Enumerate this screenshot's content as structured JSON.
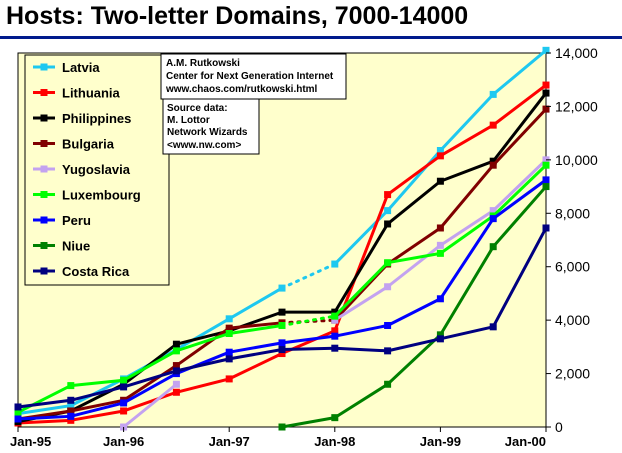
{
  "title": "Hosts: Two-letter Domains, 7000-14000",
  "credit": {
    "lines": [
      "A.M. Rutkowski",
      "Center for Next Generation Internet",
      "www.chaos.com/rutkowski.html"
    ]
  },
  "source": {
    "lines": [
      "Source data:",
      "M. Lottor",
      "Network Wizards",
      "<www.nw.com>"
    ]
  },
  "colors": {
    "plot_background": "#ffffcc",
    "title_rule": "#001a8c"
  },
  "chart_data": {
    "type": "line",
    "title": "Hosts: Two-letter Domains, 7000-14000",
    "x": [
      0,
      0.5,
      1,
      1.5,
      2,
      2.5,
      3,
      3.5,
      4,
      4.5,
      5
    ],
    "x_tick_labels": [
      "Jan-95",
      "Jan-96",
      "Jan-97",
      "Jan-98",
      "Jan-99",
      "Jan-00"
    ],
    "x_tick_positions": [
      0,
      1,
      2,
      3,
      4,
      5
    ],
    "x_unit": "years since Jan-95 (semiannual surveys)",
    "ylim": [
      0,
      14000
    ],
    "y_ticks": [
      0,
      2000,
      4000,
      6000,
      8000,
      10000,
      12000,
      14000
    ],
    "y_tick_labels": [
      "0",
      "2,000",
      "4,000",
      "6,000",
      "8,000",
      "10,000",
      "12,000",
      "14,000"
    ],
    "y_axis_side": "right",
    "grid": false,
    "legend_position": "top-left",
    "series": [
      {
        "name": "Latvia",
        "color": "#1ec8f0",
        "values": [
          500,
          800,
          1800,
          2900,
          4050,
          5200,
          6100,
          8100,
          10350,
          12450,
          14100
        ],
        "dotted_segments": [
          [
            5,
            6
          ]
        ]
      },
      {
        "name": "Lithuania",
        "color": "#ff0000",
        "values": [
          150,
          250,
          600,
          1300,
          1800,
          2750,
          3600,
          8700,
          10150,
          11300,
          12800
        ],
        "dotted_segments": []
      },
      {
        "name": "Philippines",
        "color": "#000000",
        "values": [
          200,
          600,
          1600,
          3100,
          3600,
          4300,
          4300,
          7600,
          9200,
          9950,
          12500
        ],
        "dotted_segments": []
      },
      {
        "name": "Bulgaria",
        "color": "#800000",
        "values": [
          300,
          600,
          1000,
          2300,
          3700,
          3900,
          4000,
          6100,
          7450,
          9800,
          11900
        ],
        "dotted_segments": [
          [
            5,
            6
          ]
        ]
      },
      {
        "name": "Yugoslavia",
        "color": "#c3a2f0",
        "values": [
          null,
          null,
          0,
          1600,
          null,
          null,
          4000,
          5250,
          6800,
          8100,
          10000
        ],
        "dotted_segments": []
      },
      {
        "name": "Luxembourg",
        "color": "#00ff00",
        "values": [
          550,
          1550,
          1750,
          2850,
          3500,
          3800,
          4150,
          6150,
          6500,
          7900,
          9800
        ],
        "dotted_segments": [
          [
            5,
            6
          ]
        ]
      },
      {
        "name": "Peru",
        "color": "#0000ff",
        "values": [
          300,
          400,
          900,
          2000,
          2800,
          3150,
          3400,
          3800,
          4800,
          7800,
          9250
        ],
        "dotted_segments": []
      },
      {
        "name": "Niue",
        "color": "#008000",
        "values": [
          null,
          null,
          null,
          null,
          null,
          0,
          350,
          1600,
          3450,
          6750,
          9000
        ],
        "dotted_segments": []
      },
      {
        "name": "Costa Rica",
        "color": "#000080",
        "values": [
          750,
          1000,
          1500,
          2100,
          2550,
          2900,
          2950,
          2850,
          3300,
          3750,
          7450
        ],
        "dotted_segments": []
      }
    ]
  }
}
